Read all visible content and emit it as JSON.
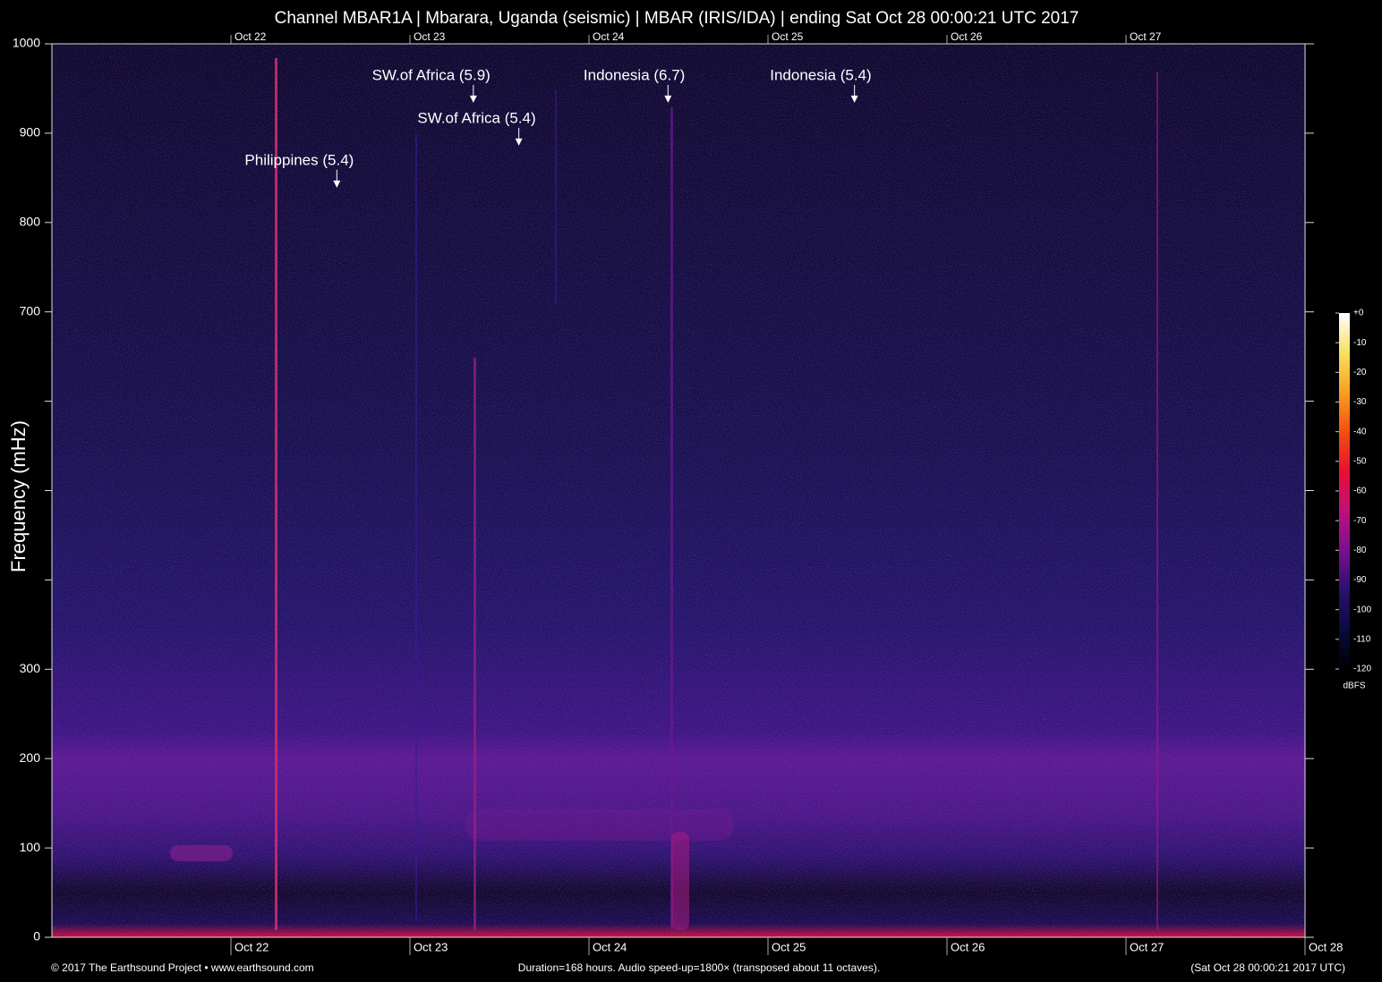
{
  "chart_data": {
    "type": "spectrogram",
    "title": "Channel MBAR1A | Mbarara, Uganda (seismic) | MBAR (IRIS/IDA) | ending Sat Oct 28 00:00:21 UTC 2017",
    "y_label": "Frequency (mHz)",
    "xlim": [
      0,
      168
    ],
    "xticks": [
      {
        "value": 24,
        "label": "Oct 22"
      },
      {
        "value": 48,
        "label": "Oct 23"
      },
      {
        "value": 72,
        "label": "Oct 24"
      },
      {
        "value": 96,
        "label": "Oct 25"
      },
      {
        "value": 120,
        "label": "Oct 26"
      },
      {
        "value": 144,
        "label": "Oct 27"
      },
      {
        "value": 168,
        "label": "Oct 28"
      }
    ],
    "ylim": [
      0,
      1000
    ],
    "yticks": [
      0,
      100,
      200,
      300,
      {
        "value": 400,
        "label": null
      },
      {
        "value": 500,
        "label": null
      },
      {
        "value": 600,
        "label": null
      },
      700,
      800,
      900,
      1000
    ],
    "events": [
      {
        "label": "Philippines (5.4)",
        "x": 38.2,
        "y": 839
      },
      {
        "label": "SW.of Africa (5.9)",
        "x": 56.5,
        "y": 934
      },
      {
        "label": "SW.of Africa (5.4)",
        "x": 62.6,
        "y": 886
      },
      {
        "label": "Indonesia (6.7)",
        "x": 82.6,
        "y": 934
      },
      {
        "label": "Indonesia (5.4)",
        "x": 107.6,
        "y": 934
      }
    ],
    "colorbar": {
      "label": "dBFS",
      "lim": [
        -120,
        0
      ],
      "ticks": [
        {
          "value": 0,
          "label": "+0"
        },
        -10,
        -20,
        -30,
        -40,
        -50,
        -60,
        -70,
        -80,
        -90,
        -100,
        -110,
        -120
      ],
      "colors": [
        "#000000",
        "#0a0a40",
        "#2a1070",
        "#7a1090",
        "#c0107a",
        "#e81030",
        "#f05010",
        "#f8a020",
        "#f8e060",
        "#ffffff"
      ]
    },
    "footer": {
      "left": "© 2017 The Earthsound Project • www.earthsound.com",
      "center": "Duration=168 hours. Audio speed-up=1800× (transposed about 11 octaves).",
      "right": "(Sat Oct 28 00:00:21 2017 UTC)"
    }
  }
}
